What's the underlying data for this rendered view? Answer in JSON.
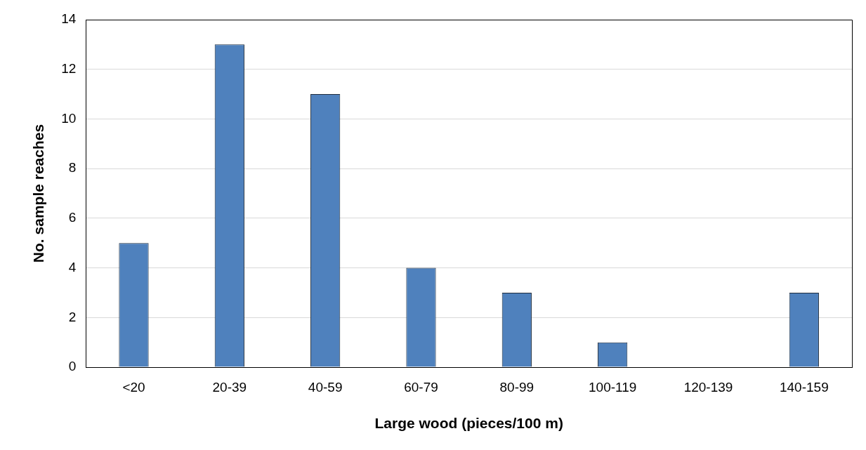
{
  "chart_data": {
    "type": "bar",
    "xlabel": "Large wood (pieces/100 m)",
    "ylabel": "No. sample reaches",
    "categories": [
      "<20",
      "20-39",
      "40-59",
      "60-79",
      "80-99",
      "100-119",
      "120-139",
      "140-159"
    ],
    "values": [
      5,
      13,
      11,
      4,
      3,
      1,
      0,
      3
    ],
    "color": "#4f81bd",
    "ylim": [
      0,
      14
    ],
    "yticks": [
      0,
      2,
      4,
      6,
      8,
      10,
      12,
      14
    ],
    "grid": "y",
    "legend": false
  }
}
